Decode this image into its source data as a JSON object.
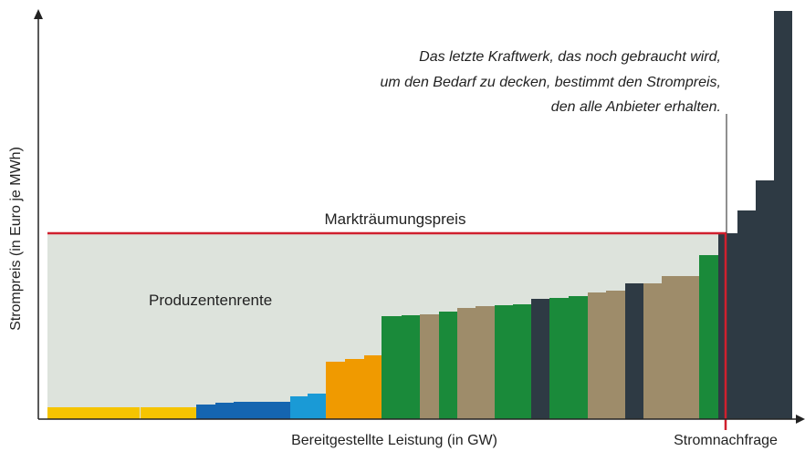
{
  "axes": {
    "y_label": "Strompreis (in Euro je MWh)",
    "x_label": "Bereitgestellte Leistung (in GW)"
  },
  "demand_label": "Stromnachfrage",
  "price_label": "Markträumungspreis",
  "surplus_label": "Produzentenrente",
  "annotation": [
    "Das letzte Kraftwerk, das noch gebraucht wird,",
    "um den Bedarf zu decken, bestimmt den Strompreis,",
    "den alle Anbieter erhalten."
  ]
}
